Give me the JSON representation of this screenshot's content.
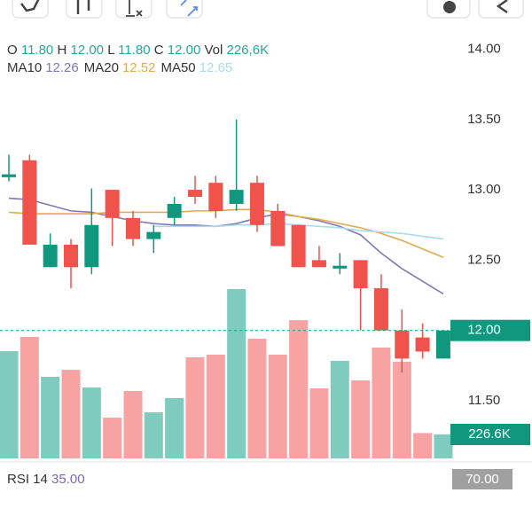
{
  "header": {
    "o_label": "O",
    "o": "11.80",
    "h_label": "H",
    "h": "12.00",
    "l_label": "L",
    "l": "11.80",
    "c_label": "C",
    "c": "12.00",
    "vol_label": "Vol",
    "vol": "226,6K"
  },
  "chart_data": {
    "type": "candlestick",
    "open": [
      13.09,
      13.21,
      12.45,
      12.61,
      12.45,
      13.0,
      12.8,
      12.65,
      12.8,
      13.0,
      13.05,
      12.9,
      13.05,
      12.85,
      12.75,
      12.5,
      12.44,
      12.5,
      12.3,
      12.0,
      11.95,
      11.8
    ],
    "high": [
      13.25,
      13.25,
      12.69,
      12.65,
      13.01,
      13.0,
      12.85,
      12.75,
      12.95,
      13.1,
      13.1,
      13.5,
      13.1,
      12.9,
      12.75,
      12.6,
      12.55,
      12.5,
      12.4,
      12.15,
      12.05,
      12.0
    ],
    "low": [
      13.06,
      12.61,
      12.45,
      12.3,
      12.4,
      12.6,
      12.6,
      12.55,
      12.75,
      12.9,
      12.8,
      12.85,
      12.7,
      12.6,
      12.45,
      12.45,
      12.4,
      12.0,
      12.0,
      11.7,
      11.8,
      11.8
    ],
    "close": [
      13.11,
      12.61,
      12.61,
      12.45,
      12.75,
      12.8,
      12.65,
      12.7,
      12.9,
      12.95,
      12.85,
      13.0,
      12.75,
      12.6,
      12.45,
      12.45,
      12.46,
      12.3,
      12.0,
      11.8,
      11.85,
      12.0
    ],
    "volumes": [
      1015000,
      1150000,
      772000,
      839000,
      671000,
      386000,
      638000,
      436000,
      571000,
      957000,
      982000,
      1603000,
      1133000,
      982000,
      1309000,
      663000,
      923000,
      738000,
      1049000,
      915000,
      240000,
      226600
    ],
    "volume_label": "226.6K",
    "up_color": "#12977f",
    "down_color": "#f0524c",
    "volume_up_color": "#7fcbbd",
    "volume_down_color": "#f7a3a3",
    "series": [
      {
        "name": "MA10",
        "color": "#8576b8",
        "values": [
          12.94,
          12.93,
          12.89,
          12.85,
          12.84,
          12.81,
          12.78,
          12.76,
          12.75,
          12.75,
          12.74,
          12.76,
          12.8,
          12.83,
          12.81,
          12.78,
          12.74,
          12.68,
          12.55,
          12.44,
          12.35,
          12.26
        ]
      },
      {
        "name": "MA20",
        "color": "#e0ab52",
        "values": [
          12.84,
          12.83,
          12.83,
          12.83,
          12.83,
          12.84,
          12.84,
          12.84,
          12.84,
          12.85,
          12.85,
          12.86,
          12.86,
          12.84,
          12.81,
          12.79,
          12.76,
          12.73,
          12.69,
          12.64,
          12.58,
          12.52
        ]
      },
      {
        "name": "MA50",
        "color": "#a6dcec",
        "values": [
          null,
          null,
          null,
          null,
          null,
          null,
          null,
          12.74,
          12.74,
          12.74,
          12.74,
          12.75,
          12.75,
          12.76,
          12.75,
          12.74,
          12.73,
          12.71,
          12.7,
          12.69,
          12.67,
          12.65
        ]
      }
    ],
    "ylim": [
      11.09,
      14.35
    ],
    "yticks": [
      {
        "value": 14,
        "label": "14.00"
      },
      {
        "value": 13.5,
        "label": "13.50"
      },
      {
        "value": 13,
        "label": "13.00"
      },
      {
        "value": 12.5,
        "label": "12.50"
      },
      {
        "value": 12,
        "label": "12.00"
      },
      {
        "value": 11.5,
        "label": "11.50"
      }
    ],
    "last_price": {
      "value": 12,
      "label": "12.00"
    },
    "label_color": "#26a69a"
  },
  "rsi": {
    "label": "RSI 14",
    "value": "35.00",
    "axis_label": "70.00"
  }
}
